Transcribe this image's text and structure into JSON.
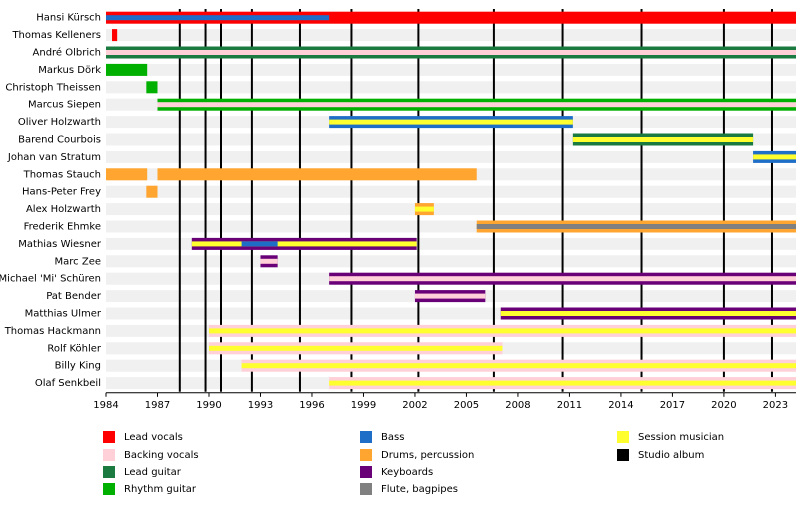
{
  "chart_data": {
    "type": "timeline",
    "xlim": [
      1984,
      2024.2
    ],
    "xticks": [
      1984,
      1987,
      1990,
      1993,
      1996,
      1999,
      2002,
      2005,
      2008,
      2011,
      2014,
      2017,
      2020,
      2023
    ],
    "roles": [
      {
        "name": "Lead vocals",
        "color": "#ff0000"
      },
      {
        "name": "Backing vocals",
        "color": "#ffd0d8"
      },
      {
        "name": "Lead guitar",
        "color": "#1a7a40"
      },
      {
        "name": "Rhythm guitar",
        "color": "#00b000"
      },
      {
        "name": "Bass",
        "color": "#1e6ec8"
      },
      {
        "name": "Drums, percussion",
        "color": "#ffa530"
      },
      {
        "name": "Keyboards",
        "color": "#6a0078"
      },
      {
        "name": "Flute, bagpipes",
        "color": "#808080"
      },
      {
        "name": "Session musician",
        "color": "#ffff30"
      }
    ],
    "album_legend": {
      "name": "Studio album",
      "color": "#000000"
    },
    "studio_albums": [
      1988.3,
      1989.8,
      1990.7,
      1992.5,
      1995.3,
      1998.3,
      2002.2,
      2006.6,
      2010.6,
      2015.2,
      2020.0,
      2022.8
    ],
    "rows": [
      {
        "name": "Hansi Kürsch",
        "bars": [
          {
            "role": 0,
            "start": 1984,
            "end": 2024.2
          }
        ],
        "stripes": [
          {
            "role": 4,
            "start": 1984,
            "end": 1997.0
          }
        ]
      },
      {
        "name": "Thomas Kelleners",
        "bars": [
          {
            "role": 0,
            "start": 1984.35,
            "end": 1984.65
          }
        ],
        "stripes": []
      },
      {
        "name": "André Olbrich",
        "bars": [
          {
            "role": 2,
            "start": 1984,
            "end": 2024.2
          }
        ],
        "stripes": [
          {
            "role": 1,
            "start": 1984,
            "end": 2024.2
          }
        ]
      },
      {
        "name": "Markus Dörk",
        "bars": [
          {
            "role": 3,
            "start": 1984,
            "end": 1986.4
          }
        ],
        "stripes": []
      },
      {
        "name": "Christoph Theissen",
        "bars": [
          {
            "role": 3,
            "start": 1986.35,
            "end": 1987.0
          }
        ],
        "stripes": []
      },
      {
        "name": "Marcus Siepen",
        "bars": [
          {
            "role": 3,
            "start": 1987.0,
            "end": 2024.2
          }
        ],
        "stripes": [
          {
            "role": 1,
            "start": 1987.0,
            "end": 2024.2
          }
        ]
      },
      {
        "name": "Oliver Holzwarth",
        "bars": [
          {
            "role": 4,
            "start": 1997.0,
            "end": 2011.2
          }
        ],
        "stripes": [
          {
            "role": 8,
            "start": 1997.0,
            "end": 2011.2
          }
        ]
      },
      {
        "name": "Barend Courbois",
        "bars": [
          {
            "role": 2,
            "start": 2011.2,
            "end": 2021.7
          }
        ],
        "stripes": [
          {
            "role": 8,
            "start": 2011.2,
            "end": 2021.7
          }
        ]
      },
      {
        "name": "Johan van Stratum",
        "bars": [
          {
            "role": 4,
            "start": 2021.7,
            "end": 2024.2
          }
        ],
        "stripes": [
          {
            "role": 8,
            "start": 2021.7,
            "end": 2024.2
          }
        ]
      },
      {
        "name": "Thomas Stauch",
        "bars": [
          {
            "role": 5,
            "start": 1984,
            "end": 1986.4
          },
          {
            "role": 5,
            "start": 1987.0,
            "end": 2005.6
          }
        ],
        "stripes": []
      },
      {
        "name": "Hans-Peter Frey",
        "bars": [
          {
            "role": 5,
            "start": 1986.35,
            "end": 1987.0
          }
        ],
        "stripes": []
      },
      {
        "name": "Alex Holzwarth",
        "bars": [
          {
            "role": 5,
            "start": 2002.0,
            "end": 2003.1
          }
        ],
        "stripes": [
          {
            "role": 8,
            "start": 2002.0,
            "end": 2003.1
          }
        ]
      },
      {
        "name": "Frederik Ehmke",
        "bars": [
          {
            "role": 5,
            "start": 2005.6,
            "end": 2024.2
          }
        ],
        "stripes": [
          {
            "role": 7,
            "start": 2005.6,
            "end": 2024.2
          }
        ]
      },
      {
        "name": "Mathias Wiesner",
        "bars": [
          {
            "role": 6,
            "start": 1989.0,
            "end": 2002.1
          }
        ],
        "stripes": [
          {
            "role": 8,
            "start": 1989.0,
            "end": 2002.1
          },
          {
            "role": 4,
            "start": 1991.9,
            "end": 1994.0
          }
        ]
      },
      {
        "name": "Marc Zee",
        "bars": [
          {
            "role": 6,
            "start": 1993.0,
            "end": 1994.0
          }
        ],
        "stripes": [
          {
            "role": 1,
            "start": 1993.0,
            "end": 1994.0
          }
        ]
      },
      {
        "name": "Michael 'Mi' Schüren",
        "bars": [
          {
            "role": 6,
            "start": 1997.0,
            "end": 2024.2
          }
        ],
        "stripes": [
          {
            "role": 1,
            "start": 1997.0,
            "end": 2024.2
          }
        ]
      },
      {
        "name": "Pat Bender",
        "bars": [
          {
            "role": 6,
            "start": 2002.0,
            "end": 2006.1
          }
        ],
        "stripes": [
          {
            "role": 1,
            "start": 2002.0,
            "end": 2006.1
          }
        ]
      },
      {
        "name": "Matthias Ulmer",
        "bars": [
          {
            "role": 6,
            "start": 2007.0,
            "end": 2024.2
          }
        ],
        "stripes": [
          {
            "role": 8,
            "start": 2007.0,
            "end": 2024.2
          }
        ]
      },
      {
        "name": "Thomas Hackmann",
        "bars": [
          {
            "role": 1,
            "start": 1990.0,
            "end": 2024.2
          }
        ],
        "stripes": [
          {
            "role": 8,
            "start": 1990.0,
            "end": 2024.2
          }
        ]
      },
      {
        "name": "Rolf Köhler",
        "bars": [
          {
            "role": 1,
            "start": 1990.0,
            "end": 2007.1
          }
        ],
        "stripes": [
          {
            "role": 8,
            "start": 1990.0,
            "end": 2007.1
          }
        ]
      },
      {
        "name": "Billy King",
        "bars": [
          {
            "role": 1,
            "start": 1991.9,
            "end": 2024.2
          }
        ],
        "stripes": [
          {
            "role": 8,
            "start": 1991.9,
            "end": 2024.2
          }
        ]
      },
      {
        "name": "Olaf Senkbeil",
        "bars": [
          {
            "role": 1,
            "start": 1997.0,
            "end": 2024.2
          }
        ],
        "stripes": [
          {
            "role": 8,
            "start": 1997.0,
            "end": 2024.2
          }
        ]
      }
    ]
  }
}
